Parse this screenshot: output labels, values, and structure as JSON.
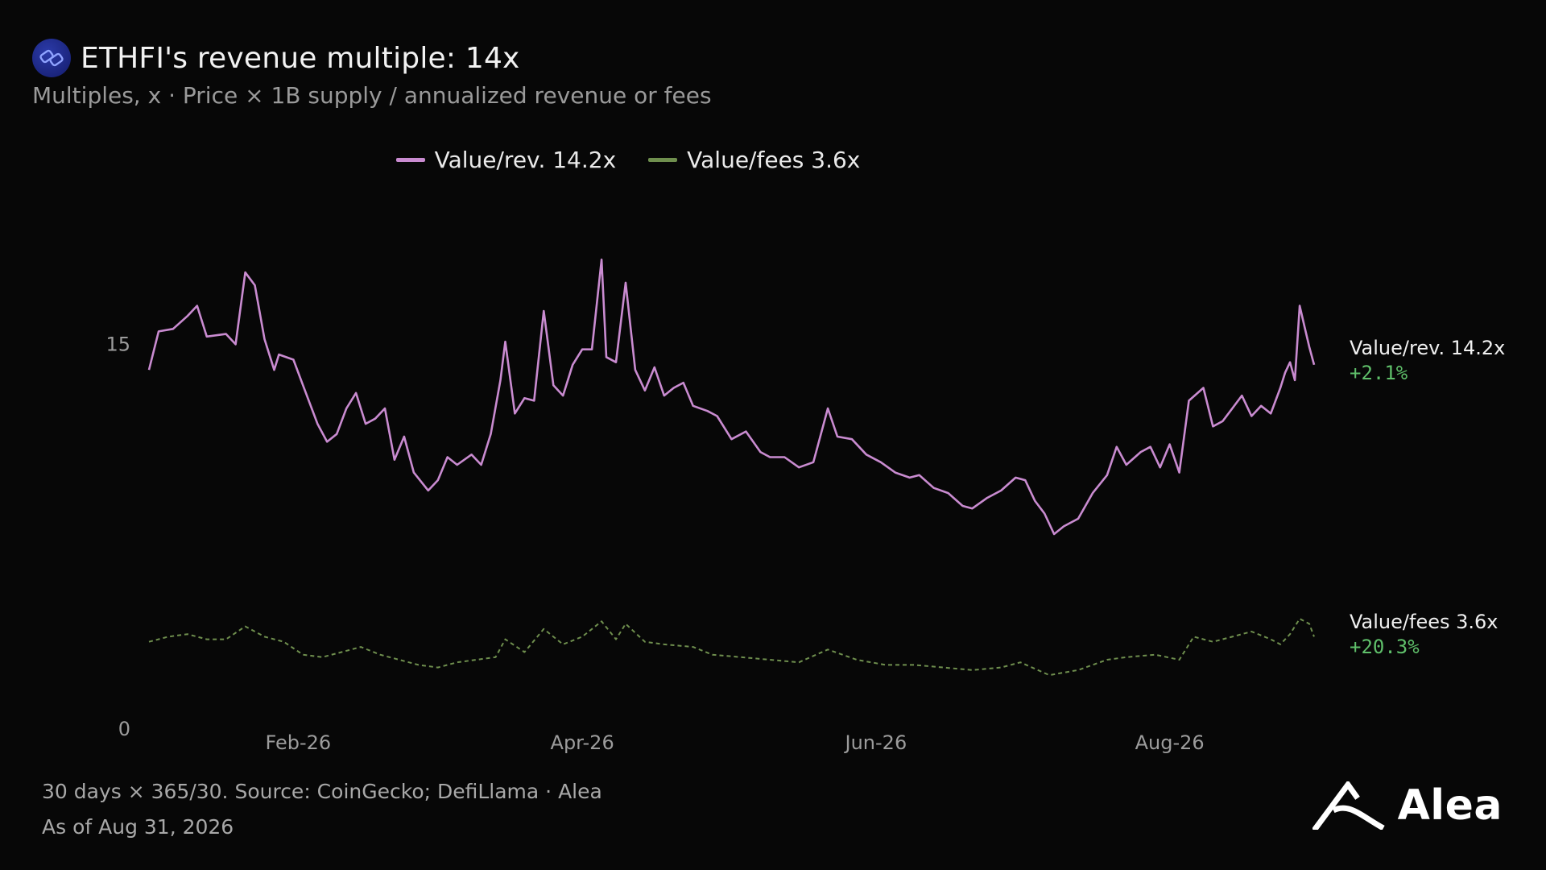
{
  "header": {
    "title": "ETHFI's revenue multiple: 14x",
    "subtitle": "Multiples, x · Price × 1B supply / annualized revenue or fees"
  },
  "footer": {
    "note": "30 days × 365/30. Source: CoinGecko; DefiLlama · Alea",
    "as_of": "As of Aug 31, 2026",
    "brand": "Alea"
  },
  "colors": {
    "rev": "#c98bd0",
    "fees": "#6f8f4e",
    "positive": "#5fbf6a",
    "background": "#070707"
  },
  "icons": {
    "title_logo": "ethfi-token-icon",
    "brand_logo": "alea-logo-icon"
  },
  "chart_data": {
    "type": "line",
    "x_range": [
      "2026-01-01",
      "2026-08-31"
    ],
    "ylim": [
      0,
      19
    ],
    "yticks": [
      0,
      15
    ],
    "xticks": [
      {
        "label": "Feb-26",
        "date": "2026-02-01"
      },
      {
        "label": "Apr-26",
        "date": "2026-04-01"
      },
      {
        "label": "Jun-26",
        "date": "2026-06-01"
      },
      {
        "label": "Aug-26",
        "date": "2026-08-01"
      }
    ],
    "grid": false,
    "legend_position": "top-center",
    "series": [
      {
        "name": "Value/rev.",
        "legend": "Value/rev. 14.2x",
        "end_label": "Value/rev. 14.2x",
        "end_change": "+2.1%",
        "style": "solid",
        "points": [
          [
            "2026-01-01",
            14.0
          ],
          [
            "2026-01-03",
            15.5
          ],
          [
            "2026-01-06",
            15.6
          ],
          [
            "2026-01-09",
            16.1
          ],
          [
            "2026-01-11",
            16.5
          ],
          [
            "2026-01-13",
            15.3
          ],
          [
            "2026-01-17",
            15.4
          ],
          [
            "2026-01-19",
            15.0
          ],
          [
            "2026-01-21",
            17.8
          ],
          [
            "2026-01-23",
            17.3
          ],
          [
            "2026-01-25",
            15.2
          ],
          [
            "2026-01-27",
            14.0
          ],
          [
            "2026-01-28",
            14.6
          ],
          [
            "2026-01-31",
            14.4
          ],
          [
            "2026-02-02",
            13.4
          ],
          [
            "2026-02-05",
            11.9
          ],
          [
            "2026-02-07",
            11.2
          ],
          [
            "2026-02-09",
            11.5
          ],
          [
            "2026-02-11",
            12.5
          ],
          [
            "2026-02-13",
            13.1
          ],
          [
            "2026-02-15",
            11.9
          ],
          [
            "2026-02-17",
            12.1
          ],
          [
            "2026-02-19",
            12.5
          ],
          [
            "2026-02-21",
            10.5
          ],
          [
            "2026-02-23",
            11.4
          ],
          [
            "2026-02-25",
            10.0
          ],
          [
            "2026-02-28",
            9.3
          ],
          [
            "2026-03-02",
            9.7
          ],
          [
            "2026-03-04",
            10.6
          ],
          [
            "2026-03-06",
            10.3
          ],
          [
            "2026-03-09",
            10.7
          ],
          [
            "2026-03-11",
            10.3
          ],
          [
            "2026-03-13",
            11.5
          ],
          [
            "2026-03-15",
            13.6
          ],
          [
            "2026-03-16",
            15.1
          ],
          [
            "2026-03-18",
            12.3
          ],
          [
            "2026-03-20",
            12.9
          ],
          [
            "2026-03-22",
            12.8
          ],
          [
            "2026-03-24",
            16.3
          ],
          [
            "2026-03-26",
            13.4
          ],
          [
            "2026-03-28",
            13.0
          ],
          [
            "2026-03-30",
            14.2
          ],
          [
            "2026-04-01",
            14.8
          ],
          [
            "2026-04-03",
            14.8
          ],
          [
            "2026-04-05",
            18.3
          ],
          [
            "2026-04-06",
            14.5
          ],
          [
            "2026-04-08",
            14.3
          ],
          [
            "2026-04-10",
            17.4
          ],
          [
            "2026-04-12",
            14.0
          ],
          [
            "2026-04-14",
            13.2
          ],
          [
            "2026-04-16",
            14.1
          ],
          [
            "2026-04-18",
            13.0
          ],
          [
            "2026-04-20",
            13.3
          ],
          [
            "2026-04-22",
            13.5
          ],
          [
            "2026-04-24",
            12.6
          ],
          [
            "2026-04-27",
            12.4
          ],
          [
            "2026-04-29",
            12.2
          ],
          [
            "2026-05-02",
            11.3
          ],
          [
            "2026-05-05",
            11.6
          ],
          [
            "2026-05-08",
            10.8
          ],
          [
            "2026-05-10",
            10.6
          ],
          [
            "2026-05-13",
            10.6
          ],
          [
            "2026-05-16",
            10.2
          ],
          [
            "2026-05-19",
            10.4
          ],
          [
            "2026-05-22",
            12.5
          ],
          [
            "2026-05-24",
            11.4
          ],
          [
            "2026-05-27",
            11.3
          ],
          [
            "2026-05-30",
            10.7
          ],
          [
            "2026-06-02",
            10.4
          ],
          [
            "2026-06-05",
            10.0
          ],
          [
            "2026-06-08",
            9.8
          ],
          [
            "2026-06-10",
            9.9
          ],
          [
            "2026-06-13",
            9.4
          ],
          [
            "2026-06-16",
            9.2
          ],
          [
            "2026-06-19",
            8.7
          ],
          [
            "2026-06-21",
            8.6
          ],
          [
            "2026-06-24",
            9.0
          ],
          [
            "2026-06-27",
            9.3
          ],
          [
            "2026-06-30",
            9.8
          ],
          [
            "2026-07-02",
            9.7
          ],
          [
            "2026-07-04",
            8.9
          ],
          [
            "2026-07-06",
            8.4
          ],
          [
            "2026-07-08",
            7.6
          ],
          [
            "2026-07-10",
            7.9
          ],
          [
            "2026-07-13",
            8.2
          ],
          [
            "2026-07-16",
            9.2
          ],
          [
            "2026-07-19",
            9.9
          ],
          [
            "2026-07-21",
            11.0
          ],
          [
            "2026-07-23",
            10.3
          ],
          [
            "2026-07-26",
            10.8
          ],
          [
            "2026-07-28",
            11.0
          ],
          [
            "2026-07-30",
            10.2
          ],
          [
            "2026-08-01",
            11.1
          ],
          [
            "2026-08-03",
            10.0
          ],
          [
            "2026-08-05",
            12.8
          ],
          [
            "2026-08-08",
            13.3
          ],
          [
            "2026-08-10",
            11.8
          ],
          [
            "2026-08-12",
            12.0
          ],
          [
            "2026-08-14",
            12.5
          ],
          [
            "2026-08-16",
            13.0
          ],
          [
            "2026-08-18",
            12.2
          ],
          [
            "2026-08-20",
            12.6
          ],
          [
            "2026-08-22",
            12.3
          ],
          [
            "2026-08-24",
            13.3
          ],
          [
            "2026-08-25",
            13.9
          ],
          [
            "2026-08-26",
            14.3
          ],
          [
            "2026-08-27",
            13.6
          ],
          [
            "2026-08-28",
            16.5
          ],
          [
            "2026-08-29",
            15.7
          ],
          [
            "2026-08-30",
            14.9
          ],
          [
            "2026-08-31",
            14.2
          ]
        ]
      },
      {
        "name": "Value/fees",
        "legend": "Value/fees 3.6x",
        "end_label": "Value/fees 3.6x",
        "end_change": "+20.3%",
        "style": "dashed",
        "points": [
          [
            "2026-01-01",
            3.4
          ],
          [
            "2026-01-05",
            3.6
          ],
          [
            "2026-01-09",
            3.7
          ],
          [
            "2026-01-13",
            3.5
          ],
          [
            "2026-01-17",
            3.5
          ],
          [
            "2026-01-21",
            4.0
          ],
          [
            "2026-01-25",
            3.6
          ],
          [
            "2026-01-29",
            3.4
          ],
          [
            "2026-02-02",
            2.9
          ],
          [
            "2026-02-06",
            2.8
          ],
          [
            "2026-02-10",
            3.0
          ],
          [
            "2026-02-14",
            3.2
          ],
          [
            "2026-02-18",
            2.9
          ],
          [
            "2026-02-22",
            2.7
          ],
          [
            "2026-02-26",
            2.5
          ],
          [
            "2026-03-02",
            2.4
          ],
          [
            "2026-03-06",
            2.6
          ],
          [
            "2026-03-10",
            2.7
          ],
          [
            "2026-03-14",
            2.8
          ],
          [
            "2026-03-16",
            3.5
          ],
          [
            "2026-03-20",
            3.0
          ],
          [
            "2026-03-24",
            3.9
          ],
          [
            "2026-03-28",
            3.3
          ],
          [
            "2026-04-01",
            3.6
          ],
          [
            "2026-04-05",
            4.2
          ],
          [
            "2026-04-08",
            3.5
          ],
          [
            "2026-04-10",
            4.1
          ],
          [
            "2026-04-14",
            3.4
          ],
          [
            "2026-04-18",
            3.3
          ],
          [
            "2026-04-24",
            3.2
          ],
          [
            "2026-04-28",
            2.9
          ],
          [
            "2026-05-04",
            2.8
          ],
          [
            "2026-05-10",
            2.7
          ],
          [
            "2026-05-16",
            2.6
          ],
          [
            "2026-05-22",
            3.1
          ],
          [
            "2026-05-28",
            2.7
          ],
          [
            "2026-06-03",
            2.5
          ],
          [
            "2026-06-09",
            2.5
          ],
          [
            "2026-06-15",
            2.4
          ],
          [
            "2026-06-21",
            2.3
          ],
          [
            "2026-06-27",
            2.4
          ],
          [
            "2026-07-01",
            2.6
          ],
          [
            "2026-07-07",
            2.1
          ],
          [
            "2026-07-13",
            2.3
          ],
          [
            "2026-07-19",
            2.7
          ],
          [
            "2026-07-23",
            2.8
          ],
          [
            "2026-07-29",
            2.9
          ],
          [
            "2026-08-03",
            2.7
          ],
          [
            "2026-08-06",
            3.6
          ],
          [
            "2026-08-10",
            3.4
          ],
          [
            "2026-08-14",
            3.6
          ],
          [
            "2026-08-18",
            3.8
          ],
          [
            "2026-08-22",
            3.5
          ],
          [
            "2026-08-24",
            3.3
          ],
          [
            "2026-08-26",
            3.7
          ],
          [
            "2026-08-28",
            4.3
          ],
          [
            "2026-08-30",
            4.1
          ],
          [
            "2026-08-31",
            3.6
          ]
        ]
      }
    ]
  }
}
